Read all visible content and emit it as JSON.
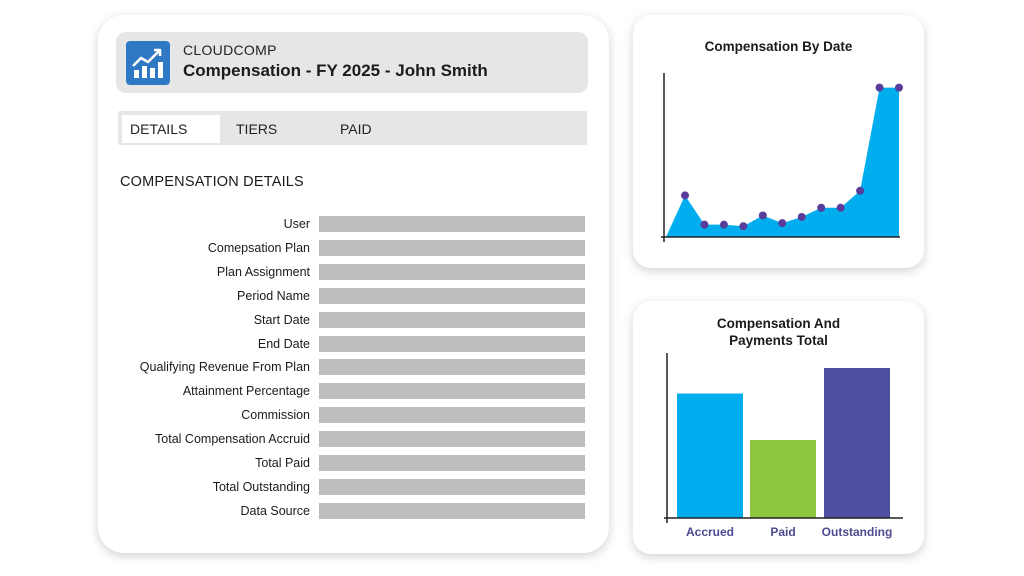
{
  "app": {
    "brand": "CLOUDCOMP",
    "title": "Compensation - FY 2025 - John Smith",
    "logo_icon": "trending-up-chart-icon"
  },
  "tabs": [
    {
      "label": "DETAILS",
      "active": true
    },
    {
      "label": "TIERS",
      "active": false
    },
    {
      "label": "PAID",
      "active": false
    }
  ],
  "details": {
    "section_title": "COMPENSATION DETAILS",
    "fields": [
      "User",
      "Comepsation Plan",
      "Plan Assignment",
      "Period Name",
      "Start Date",
      "End Date",
      "Qualifying Revenue From Plan",
      "Attainment Percentage",
      "Commission",
      "Total Compensation Accruid",
      "Total Paid",
      "Total Outstanding",
      "Data Source"
    ]
  },
  "colors": {
    "accent_blue": "#00aeef",
    "green": "#8dc63f",
    "purple": "#4f4fa0",
    "point_purple": "#5a3d9a",
    "logo_blue": "#2f78c4",
    "placeholder_bar": "#bdbdbf"
  },
  "chart_data": [
    {
      "type": "area",
      "title": "Compensation By Date",
      "x": [
        1,
        2,
        3,
        4,
        5,
        6,
        7,
        8,
        9,
        10,
        11,
        12
      ],
      "values": [
        0.27,
        0.08,
        0.08,
        0.07,
        0.14,
        0.09,
        0.13,
        0.19,
        0.19,
        0.3,
        0.97,
        0.97
      ],
      "ylim": [
        0,
        1.1
      ],
      "grid": false,
      "xlabel": "",
      "ylabel": ""
    },
    {
      "type": "bar",
      "title_lines": [
        "Compensation And",
        "Payments Total"
      ],
      "categories": [
        "Accrued",
        "Paid",
        "Outstanding"
      ],
      "values": [
        0.83,
        0.52,
        1.0
      ],
      "ylim": [
        0,
        1.1
      ],
      "grid": false,
      "xlabel": "",
      "ylabel": ""
    }
  ]
}
